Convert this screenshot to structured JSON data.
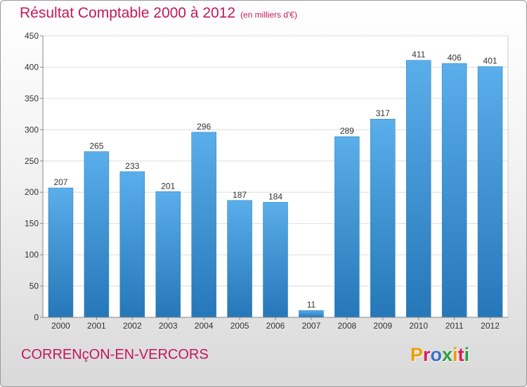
{
  "header": {
    "title": "Résultat Comptable 2000 à 2012",
    "subtitle": "(en milliers d'€)"
  },
  "footer": {
    "place": "CORRENçON-EN-VERCORS",
    "brand": "Proxiti",
    "brand_colors": [
      "#e8a000",
      "#d81b60",
      "#3a6fc4",
      "#2e9e3e",
      "#e8a000",
      "#d81b60",
      "#2e9e3e"
    ]
  },
  "colors": {
    "bar_top": "#5aaeea",
    "bar_bottom": "#2677b8",
    "accent": "#c2185b"
  },
  "chart_data": {
    "type": "bar",
    "categories": [
      "2000",
      "2001",
      "2002",
      "2003",
      "2004",
      "2005",
      "2006",
      "2007",
      "2008",
      "2009",
      "2010",
      "2011",
      "2012"
    ],
    "values": [
      207,
      265,
      233,
      201,
      296,
      187,
      184,
      11,
      289,
      317,
      411,
      406,
      401
    ],
    "ylim": [
      0,
      450
    ],
    "yticks": [
      0,
      50,
      100,
      150,
      200,
      250,
      300,
      350,
      400,
      450
    ],
    "grid": true,
    "data_labels": true
  }
}
